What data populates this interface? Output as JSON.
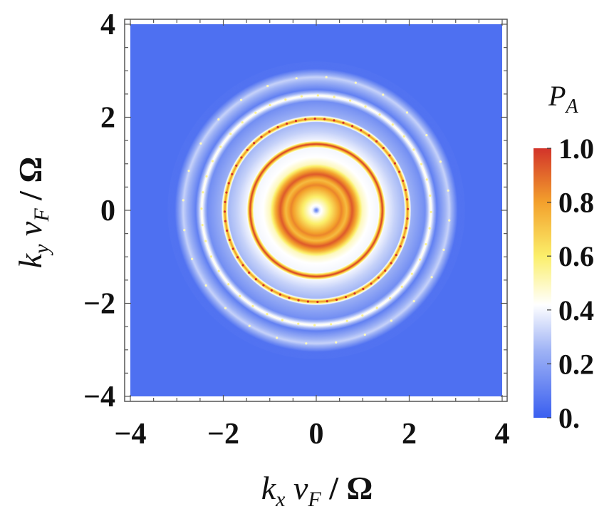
{
  "chart_data": {
    "type": "heatmap",
    "title": "",
    "xlabel_parts": {
      "k": "k",
      "k_sub": "x",
      "v": " v",
      "v_sub": "F",
      "tail": " / Ω"
    },
    "ylabel_parts": {
      "k": "k",
      "k_sub": "y",
      "v": " v",
      "v_sub": "F",
      "tail": " / Ω"
    },
    "xlim": [
      -4,
      4
    ],
    "ylim": [
      -4,
      4
    ],
    "x_ticks": [
      {
        "value": -4,
        "label": "−4"
      },
      {
        "value": -2,
        "label": "−2"
      },
      {
        "value": 0,
        "label": "0"
      },
      {
        "value": 2,
        "label": "2"
      },
      {
        "value": 4,
        "label": "4"
      }
    ],
    "y_ticks": [
      {
        "value": -4,
        "label": "−4"
      },
      {
        "value": -2,
        "label": "−2"
      },
      {
        "value": 0,
        "label": "0"
      },
      {
        "value": 2,
        "label": "2"
      },
      {
        "value": 4,
        "label": "4"
      }
    ],
    "colorbar": {
      "title_main": "P",
      "title_sub": "A",
      "range": [
        0,
        1
      ],
      "ticks": [
        {
          "value": 0.0,
          "label": "0."
        },
        {
          "value": 0.2,
          "label": "0.2"
        },
        {
          "value": 0.4,
          "label": "0.4"
        },
        {
          "value": 0.6,
          "label": "0.6"
        },
        {
          "value": 0.8,
          "label": "0.8"
        },
        {
          "value": 1.0,
          "label": "1.0"
        }
      ],
      "colors": [
        {
          "value": 0.0,
          "color": "#3a5ff0"
        },
        {
          "value": 0.25,
          "color": "#9fb3f5"
        },
        {
          "value": 0.42,
          "color": "#ffffff"
        },
        {
          "value": 0.6,
          "color": "#fbef6a"
        },
        {
          "value": 0.8,
          "color": "#f3a02c"
        },
        {
          "value": 1.0,
          "color": "#d2332a"
        }
      ]
    },
    "background_value": 0.05,
    "radial_profile": [
      {
        "r": 0.0,
        "value": 0.05
      },
      {
        "r": 0.08,
        "value": 0.38
      },
      {
        "r": 0.2,
        "value": 0.5
      },
      {
        "r": 0.38,
        "value": 0.68
      },
      {
        "r": 0.55,
        "value": 0.85
      },
      {
        "r": 0.66,
        "value": 0.73
      },
      {
        "r": 0.78,
        "value": 0.93
      },
      {
        "r": 0.88,
        "value": 0.78
      },
      {
        "r": 1.0,
        "value": 0.5
      },
      {
        "r": 1.15,
        "value": 0.42
      },
      {
        "r": 1.35,
        "value": 0.4
      },
      {
        "r": 1.43,
        "value": 1.0
      },
      {
        "r": 1.5,
        "value": 0.4
      },
      {
        "r": 1.7,
        "value": 0.32
      },
      {
        "r": 1.9,
        "value": 0.26
      },
      {
        "r": 1.97,
        "value": 0.85
      },
      {
        "r": 2.05,
        "value": 0.24
      },
      {
        "r": 2.35,
        "value": 0.14
      },
      {
        "r": 2.47,
        "value": 0.45
      },
      {
        "r": 2.6,
        "value": 0.1
      },
      {
        "r": 2.87,
        "value": 0.32
      },
      {
        "r": 3.05,
        "value": 0.06
      },
      {
        "r": 4.0,
        "value": 0.05
      }
    ]
  }
}
